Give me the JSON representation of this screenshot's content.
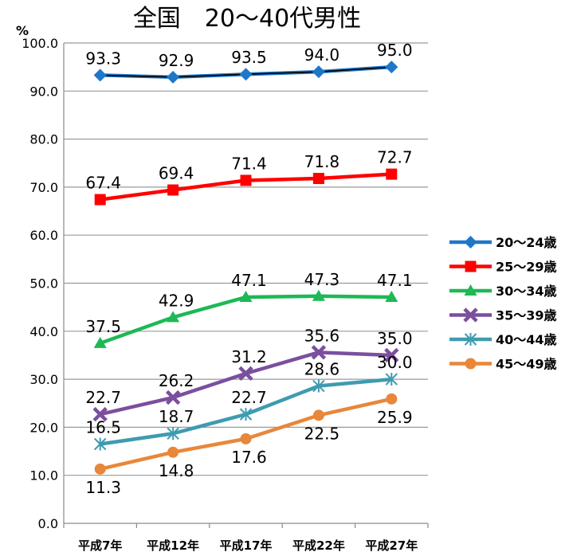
{
  "chart_data": {
    "type": "line",
    "title": "全国　20～40代男性",
    "y_unit": "%",
    "xlabel": "",
    "ylabel": "",
    "ylim": [
      0,
      100
    ],
    "y_ticks": [
      "0.0",
      "10.0",
      "20.0",
      "30.0",
      "40.0",
      "50.0",
      "60.0",
      "70.0",
      "80.0",
      "90.0",
      "100.0"
    ],
    "categories": [
      "平成7年",
      "平成12年",
      "平成17年",
      "平成22年",
      "平成27年"
    ],
    "grid": true,
    "legend_position": "right",
    "series": [
      {
        "name": "20～24歳",
        "values": [
          93.3,
          92.9,
          93.5,
          94.0,
          95.0
        ],
        "labels": [
          "93.3",
          "92.9",
          "93.5",
          "94.0",
          "95.0"
        ],
        "color": "#1f77c8",
        "marker": "diamond",
        "label_pos": "above"
      },
      {
        "name": "25～29歳",
        "values": [
          67.4,
          69.4,
          71.4,
          71.8,
          72.7
        ],
        "labels": [
          "67.4",
          "69.4",
          "71.4",
          "71.8",
          "72.7"
        ],
        "color": "#ff0000",
        "marker": "square",
        "label_pos": "above"
      },
      {
        "name": "30～34歳",
        "values": [
          37.5,
          42.9,
          47.1,
          47.3,
          47.1
        ],
        "labels": [
          "37.5",
          "42.9",
          "47.1",
          "47.3",
          "47.1"
        ],
        "color": "#1db954",
        "marker": "triangle",
        "label_pos": "above"
      },
      {
        "name": "35～39歳",
        "values": [
          22.7,
          26.2,
          31.2,
          35.6,
          35.0
        ],
        "labels": [
          "22.7",
          "26.2",
          "31.2",
          "35.6",
          "35.0"
        ],
        "color": "#7b4f9e",
        "marker": "cross",
        "label_pos": "above"
      },
      {
        "name": "40～44歳",
        "values": [
          16.5,
          18.7,
          22.7,
          28.6,
          30.0
        ],
        "labels": [
          "16.5",
          "18.7",
          "22.7",
          "28.6",
          "30.0"
        ],
        "color": "#3e9bb0",
        "marker": "star",
        "label_pos": "above"
      },
      {
        "name": "45～49歳",
        "values": [
          11.3,
          14.8,
          17.6,
          22.5,
          25.9
        ],
        "labels": [
          "11.3",
          "14.8",
          "17.6",
          "22.5",
          "25.9"
        ],
        "color": "#e8873a",
        "marker": "circle",
        "label_pos": "below"
      }
    ]
  }
}
